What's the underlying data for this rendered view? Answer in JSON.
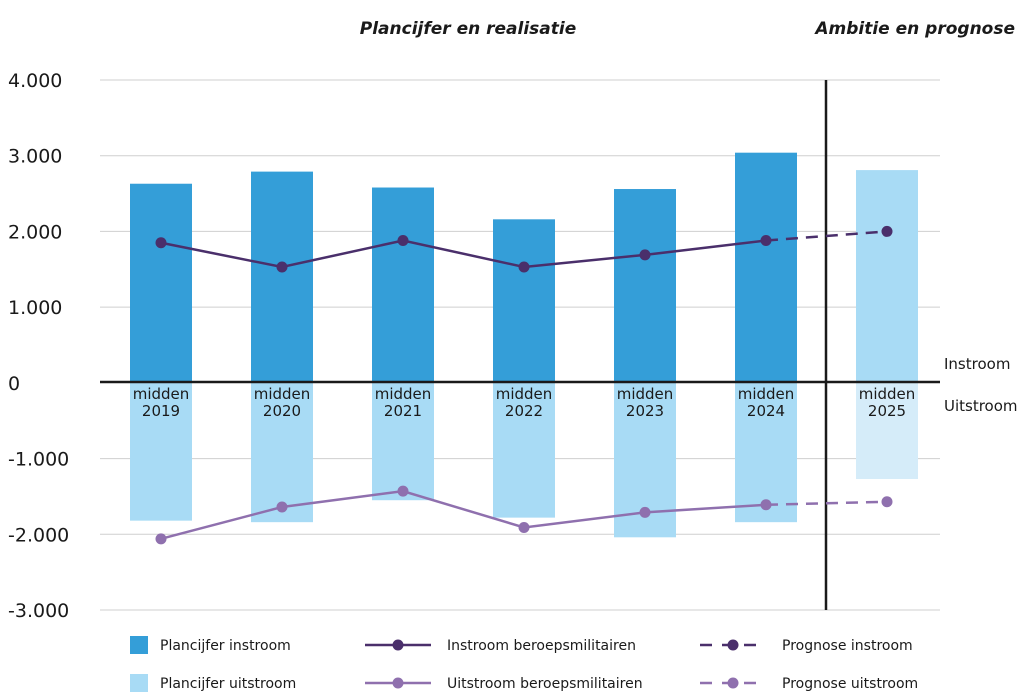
{
  "sections": {
    "left": "Plancijfer en realisatie",
    "right": "Ambitie en prognose"
  },
  "side_labels": {
    "top": "Instroom",
    "bottom": "Uitstroom"
  },
  "legend": [
    {
      "key": "plan_in",
      "label": "Plancijfer instroom",
      "kind": "rect",
      "color": "#349ed8"
    },
    {
      "key": "plan_out",
      "label": "Plancijfer uitstroom",
      "kind": "rect",
      "color": "#a8dbf5"
    },
    {
      "key": "real_in",
      "label": "Instroom beroepsmilitairen",
      "kind": "line",
      "color": "#4a2f6b"
    },
    {
      "key": "real_out",
      "label": "Uitstroom beroepsmilitairen",
      "kind": "line",
      "color": "#8f70ae"
    },
    {
      "key": "prog_in",
      "label": "Prognose instroom",
      "kind": "dash",
      "color": "#4a2f6b"
    },
    {
      "key": "prog_out",
      "label": "Prognose uitstroom",
      "kind": "dash",
      "color": "#8f70ae"
    }
  ],
  "colors": {
    "plan_in": "#349ed8",
    "plan_out": "#a8dbf5",
    "plan_in_forecast": "#a8dbf5",
    "plan_out_forecast": "#d5ecf9",
    "real_in": "#4a2f6b",
    "real_out": "#8f70ae",
    "axis": "#1a1a1a",
    "grid": "#cfcfcf"
  },
  "chart_data": {
    "type": "bar",
    "categories": [
      [
        "midden",
        "2019"
      ],
      [
        "midden",
        "2020"
      ],
      [
        "midden",
        "2021"
      ],
      [
        "midden",
        "2022"
      ],
      [
        "midden",
        "2023"
      ],
      [
        "midden",
        "2024"
      ],
      [
        "midden",
        "2025"
      ]
    ],
    "forecast_categories": [
      6
    ],
    "y_ticks": [
      "4.000",
      "3.000",
      "2.000",
      "1.000",
      "0",
      "-1.000",
      "-2.000",
      "-3.000"
    ],
    "ylim": [
      -3000,
      4000
    ],
    "grid": true,
    "legend_position": "bottom",
    "series": [
      {
        "name": "Plancijfer instroom",
        "kind": "bar",
        "values": [
          2630,
          2790,
          2580,
          2160,
          2560,
          3040,
          2810
        ]
      },
      {
        "name": "Plancijfer uitstroom",
        "kind": "bar",
        "values": [
          -1820,
          -1840,
          -1550,
          -1780,
          -2040,
          -1840,
          -1270
        ]
      },
      {
        "name": "Instroom beroepsmilitairen",
        "kind": "line",
        "values": [
          1850,
          1530,
          1880,
          1530,
          1690,
          1880,
          null
        ]
      },
      {
        "name": "Uitstroom beroepsmilitairen",
        "kind": "line",
        "values": [
          -2060,
          -1640,
          -1430,
          -1910,
          -1710,
          -1610,
          null
        ]
      },
      {
        "name": "Prognose instroom",
        "kind": "dashed",
        "values": [
          null,
          null,
          null,
          null,
          null,
          1880,
          2000
        ]
      },
      {
        "name": "Prognose uitstroom",
        "kind": "dashed",
        "values": [
          null,
          null,
          null,
          null,
          null,
          -1610,
          -1570
        ]
      }
    ]
  }
}
